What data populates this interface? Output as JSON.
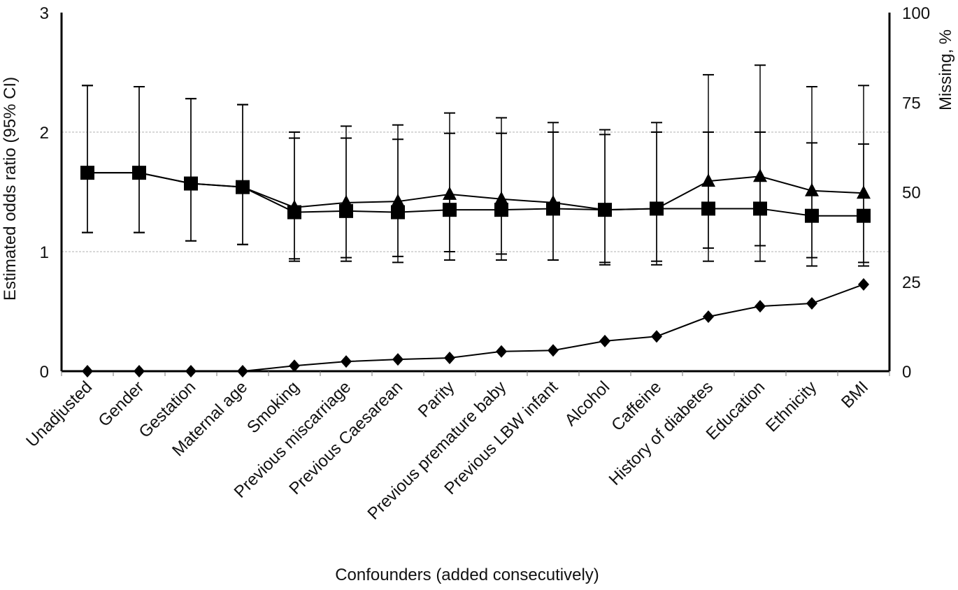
{
  "chart_data": {
    "type": "line",
    "title": "",
    "xlabel": "Confounders (added consecutively)",
    "ylabel": "Estimated odds ratio (95% CI)",
    "y2label": "Missing, %",
    "ylim": [
      0,
      3
    ],
    "y2lim": [
      0,
      100
    ],
    "yticks": [
      "0",
      "1",
      "2",
      "3"
    ],
    "y2ticks": [
      "0",
      "25",
      "50",
      "75",
      "100"
    ],
    "grid": "horizontal at 1 and 2",
    "categories": [
      "Unadjusted",
      "Gender",
      "Gestation",
      "Maternal age",
      "Smoking",
      "Previous miscarriage",
      "Previous Caesarean",
      "Parity",
      "Previous premature baby",
      "Previous LBW infant",
      "Alcohol",
      "Caffeine",
      "History of diabetes",
      "Education",
      "Ethnicity",
      "BMI"
    ],
    "series": [
      {
        "marker": "triangle",
        "axis": "left",
        "values": [
          1.66,
          1.66,
          1.57,
          1.54,
          1.37,
          1.41,
          1.42,
          1.48,
          1.44,
          1.41,
          1.35,
          1.36,
          1.59,
          1.63,
          1.51,
          1.49
        ],
        "ci_low": [
          1.16,
          1.16,
          1.09,
          1.06,
          0.92,
          0.92,
          0.91,
          0.93,
          0.93,
          0.93,
          0.89,
          0.89,
          0.92,
          0.92,
          0.88,
          0.88
        ],
        "ci_high": [
          2.39,
          2.38,
          2.28,
          2.23,
          2.0,
          2.05,
          2.06,
          2.16,
          2.12,
          2.08,
          2.02,
          2.08,
          2.48,
          2.56,
          2.38,
          2.39
        ]
      },
      {
        "marker": "square",
        "axis": "left",
        "values": [
          1.66,
          1.66,
          1.57,
          1.54,
          1.33,
          1.34,
          1.33,
          1.35,
          1.35,
          1.36,
          1.35,
          1.36,
          1.36,
          1.36,
          1.3,
          1.3
        ],
        "ci_low": [
          1.16,
          1.16,
          1.09,
          1.06,
          0.94,
          0.95,
          0.96,
          1.0,
          0.98,
          0.93,
          0.91,
          0.92,
          1.03,
          1.05,
          0.95,
          0.91
        ],
        "ci_high": [
          2.39,
          2.38,
          2.28,
          2.23,
          1.95,
          1.95,
          1.94,
          1.99,
          1.99,
          2.0,
          1.98,
          2.0,
          2.0,
          2.0,
          1.91,
          1.9
        ]
      },
      {
        "marker": "diamond",
        "axis": "right",
        "values": [
          0,
          0,
          0,
          0,
          1.5,
          2.7,
          3.3,
          3.7,
          5.5,
          5.8,
          8.4,
          9.7,
          15.2,
          18.1,
          18.9,
          24.2
        ]
      }
    ],
    "colors": {
      "ink": "#000000",
      "grid": "#cccccc"
    }
  }
}
